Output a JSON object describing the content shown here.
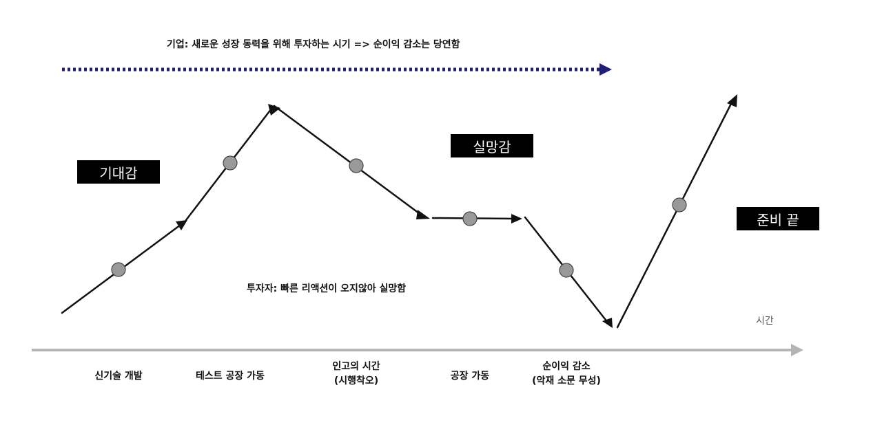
{
  "header": {
    "note": "기업: 새로운 성장 동력을 위해 투자하는 시기 => 순이익 감소는 당연함",
    "arrow_color": "#1f1f7a"
  },
  "badges": {
    "expectation": "기대감",
    "disappointment": "실망감",
    "ready": "준비 끝"
  },
  "investor_note": "투자자: 빠른 리액션이 오지않아 실망함",
  "axis": {
    "label": "시간",
    "color": "#b5b5b5"
  },
  "stages": [
    {
      "line1": "신기술 개발",
      "line2": ""
    },
    {
      "line1": "테스트 공장 가동",
      "line2": ""
    },
    {
      "line1": "인고의 시간",
      "line2": "(시행착오)"
    },
    {
      "line1": "공장 가동",
      "line2": ""
    },
    {
      "line1": "순이익 감소",
      "line2": "(악재 소문 무성)"
    }
  ],
  "colors": {
    "line": "#111111",
    "node_fill": "#999999",
    "badge_bg": "#000000",
    "badge_text": "#ffffff"
  }
}
